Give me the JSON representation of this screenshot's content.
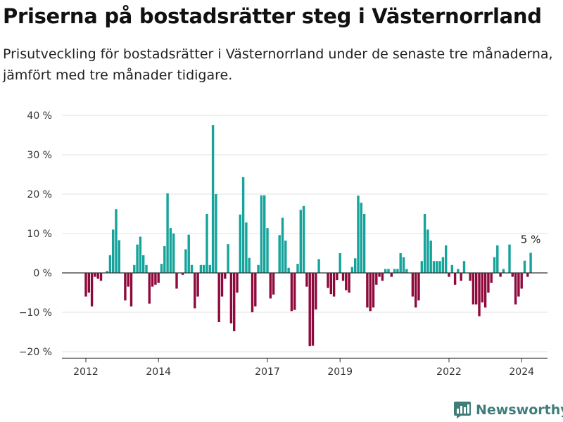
{
  "header": {
    "title": "Priserna på bostadsrätter steg i Västernorrland",
    "subtitle": "Prisutveckling för bostadsrätter i Västernorrland under de senaste tre månaderna, jämfört med tre månader tidigare."
  },
  "brand": {
    "name": "Newsworthy",
    "icon": "newsworthy-logo-icon"
  },
  "colors": {
    "positive": "#15a39b",
    "negative": "#8e0a3c",
    "zero_line": "#333333",
    "grid": "#e2e2e2"
  },
  "chart_data": {
    "type": "bar",
    "title": "Priserna på bostadsrätter steg i Västernorrland",
    "xlabel": "",
    "ylabel": "",
    "ylim": [
      -22,
      42
    ],
    "y_ticks": [
      40,
      30,
      20,
      10,
      0,
      -10,
      -20
    ],
    "y_tick_labels": [
      "40 %",
      "30 %",
      "20 %",
      "10 %",
      "0 %",
      "−10 %",
      "−20 %"
    ],
    "x_ticks": [
      {
        "year": 2012,
        "label": "2012"
      },
      {
        "year": 2014,
        "label": "2014"
      },
      {
        "year": 2017,
        "label": "2017"
      },
      {
        "year": 2019,
        "label": "2019"
      },
      {
        "year": 2022,
        "label": "2022"
      },
      {
        "year": 2024,
        "label": "2024"
      }
    ],
    "grid": true,
    "start": "2012-01",
    "frequency": "monthly",
    "values": [
      -6,
      -5,
      -8.5,
      -1,
      -1.5,
      -2,
      0,
      0.5,
      4.5,
      11,
      16.2,
      8.3,
      0,
      -7,
      -3.5,
      -8.5,
      2,
      7.2,
      9.2,
      4.5,
      2,
      -7.8,
      -3.5,
      -3,
      -2.5,
      2.3,
      6.8,
      20.2,
      11.4,
      10,
      -4,
      0,
      -0.5,
      6,
      9.7,
      2,
      -9,
      -6,
      2,
      2,
      15,
      2,
      37.5,
      20,
      -12.5,
      -6,
      -1.5,
      7.3,
      -12.8,
      -14.8,
      -5,
      14.8,
      24.3,
      12.8,
      3.8,
      -10,
      -8.5,
      2,
      19.7,
      19.7,
      11.4,
      -6.5,
      -5.5,
      0,
      9.6,
      14,
      8.2,
      1.3,
      -9.7,
      -9.4,
      2.3,
      16,
      17,
      -3.5,
      -18.6,
      -18.5,
      -9.3,
      3.5,
      0,
      0,
      -3.8,
      -5.4,
      -6,
      -1.8,
      5,
      -2,
      -4.4,
      -5,
      1.5,
      3.7,
      19.6,
      17.8,
      15,
      -8.8,
      -9.7,
      -8.8,
      -3,
      -1,
      -2,
      1,
      1,
      -1,
      1,
      1,
      5,
      4,
      1,
      0,
      -6,
      -8.8,
      -7,
      3,
      15,
      11,
      8.2,
      3,
      3,
      3,
      4,
      7,
      -1,
      2,
      -3,
      1,
      -2,
      3,
      0,
      -2,
      -8,
      -8,
      -11,
      -7.5,
      -8.8,
      -5,
      -2.5,
      4,
      7,
      -1,
      1,
      0,
      7.2,
      -1,
      -8,
      -6,
      -4,
      3.1,
      -1,
      5.1
    ],
    "annotation": {
      "label": "5 %",
      "value": 5,
      "target": "last"
    }
  }
}
